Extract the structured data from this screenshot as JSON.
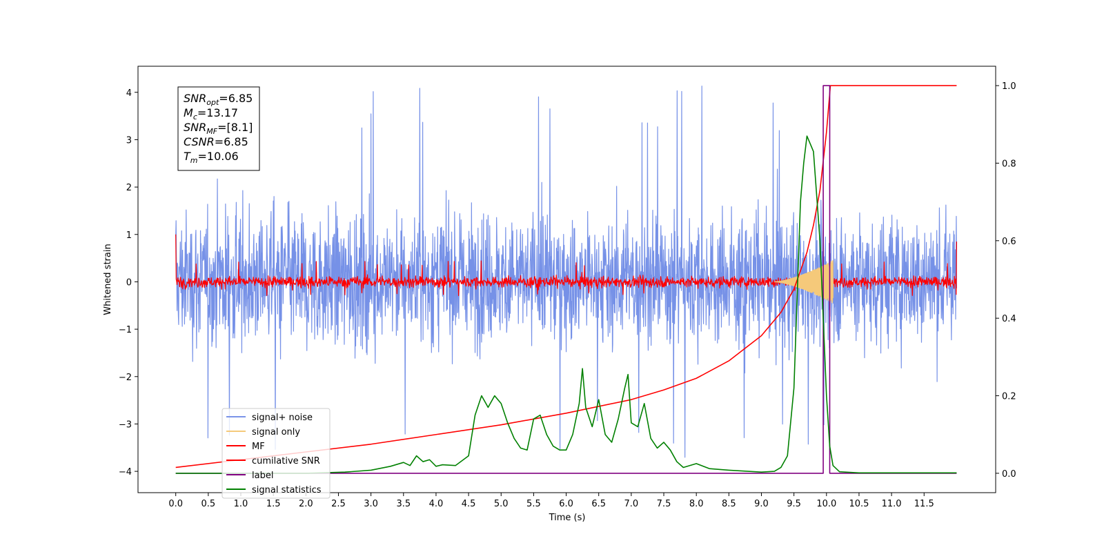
{
  "chart_data": {
    "type": "line",
    "title": "",
    "xlabel": "Time (s)",
    "ylabel": "Whitened strain",
    "y2label": "",
    "xlim": [
      -0.58,
      12.6
    ],
    "ylim": [
      -4.45,
      4.55
    ],
    "y2lim": [
      -0.05,
      1.05
    ],
    "x_ticks": [
      "0.0",
      "0.5",
      "1.0",
      "1.5",
      "2.0",
      "2.5",
      "3.0",
      "3.5",
      "4.0",
      "4.5",
      "5.0",
      "5.5",
      "6.0",
      "6.5",
      "7.0",
      "7.5",
      "8.0",
      "8.5",
      "9.0",
      "9.5",
      "10.0",
      "10.5",
      "11.0",
      "11.5"
    ],
    "y_ticks": [
      "4",
      "3",
      "2",
      "1",
      "0",
      "−1",
      "−2",
      "−3",
      "−4"
    ],
    "y2_ticks": [
      "1.0",
      "0.8",
      "0.6",
      "0.4",
      "0.2",
      "0.0"
    ],
    "grid": false,
    "legend_position": "lower-left",
    "annotation": {
      "lines": [
        {
          "sym": "SNR",
          "sub": "opt",
          "value": "=6.85"
        },
        {
          "sym": "M",
          "sub": "c",
          "value": "=13.17"
        },
        {
          "sym": "SNR",
          "sub": "MF",
          "value": "=[8.1]"
        },
        {
          "sym": "CSNR",
          "sub": "",
          "value": "=6.85"
        },
        {
          "sym": "T",
          "sub": "m",
          "value": "=10.06"
        }
      ]
    },
    "series": [
      {
        "name": "signal+ noise",
        "axis": "left",
        "color": "#6f8be6",
        "kind": "noise",
        "x_range": [
          0.0,
          12.0
        ],
        "band_typical": [
          -1.7,
          1.8
        ],
        "band_peak": [
          -3.8,
          4.2
        ]
      },
      {
        "name": "signal only",
        "axis": "left",
        "color": "#f5c97a",
        "kind": "chirp",
        "x_range": [
          9.2,
          10.1
        ],
        "peak_amplitude": 0.45
      },
      {
        "name": "MF",
        "axis": "left",
        "color": "#ff0000",
        "kind": "noise",
        "x_range": [
          0.0,
          12.0
        ],
        "band_typical": [
          -0.15,
          0.15
        ],
        "band_peak": [
          -0.3,
          0.45
        ],
        "edge_values": [
          1.0,
          0.85
        ]
      },
      {
        "name": "cumilative SNR",
        "axis": "right",
        "color": "#ff0000",
        "kind": "line",
        "x": [
          0.0,
          1.0,
          2.0,
          3.0,
          4.0,
          5.0,
          6.0,
          7.0,
          7.5,
          8.0,
          8.5,
          9.0,
          9.3,
          9.5,
          9.7,
          9.8,
          9.9,
          10.0,
          10.06,
          10.5,
          11.0,
          11.5,
          12.0
        ],
        "values": [
          0.015,
          0.035,
          0.055,
          0.075,
          0.1,
          0.125,
          0.155,
          0.19,
          0.215,
          0.245,
          0.29,
          0.355,
          0.415,
          0.475,
          0.57,
          0.64,
          0.73,
          0.88,
          1.0,
          1.0,
          1.0,
          1.0,
          1.0
        ]
      },
      {
        "name": "label",
        "axis": "right",
        "color": "#800080",
        "kind": "line",
        "x": [
          0.0,
          9.95,
          9.95,
          10.05,
          10.05,
          10.15,
          10.15,
          12.0
        ],
        "values": [
          0.0,
          0.0,
          1.0,
          1.0,
          0.0,
          0.0,
          0.0,
          0.0
        ]
      },
      {
        "name": "signal statistics",
        "axis": "right",
        "color": "#008000",
        "kind": "line",
        "x": [
          0.0,
          2.0,
          2.6,
          3.0,
          3.3,
          3.5,
          3.6,
          3.7,
          3.8,
          3.9,
          4.0,
          4.1,
          4.3,
          4.5,
          4.6,
          4.7,
          4.8,
          4.9,
          5.0,
          5.1,
          5.2,
          5.3,
          5.4,
          5.5,
          5.6,
          5.7,
          5.8,
          5.9,
          6.0,
          6.1,
          6.2,
          6.25,
          6.3,
          6.4,
          6.5,
          6.6,
          6.7,
          6.8,
          6.9,
          6.95,
          7.0,
          7.1,
          7.2,
          7.3,
          7.4,
          7.5,
          7.6,
          7.7,
          7.8,
          8.0,
          8.2,
          8.5,
          9.0,
          9.2,
          9.3,
          9.4,
          9.5,
          9.6,
          9.65,
          9.7,
          9.75,
          9.8,
          9.9,
          10.0,
          10.05,
          10.1,
          10.2,
          10.5,
          12.0
        ],
        "values": [
          0.0,
          0.0,
          0.003,
          0.008,
          0.018,
          0.028,
          0.02,
          0.045,
          0.03,
          0.035,
          0.018,
          0.022,
          0.02,
          0.045,
          0.15,
          0.2,
          0.17,
          0.2,
          0.18,
          0.13,
          0.09,
          0.065,
          0.06,
          0.14,
          0.15,
          0.1,
          0.07,
          0.06,
          0.06,
          0.1,
          0.18,
          0.27,
          0.17,
          0.12,
          0.19,
          0.1,
          0.08,
          0.14,
          0.22,
          0.255,
          0.13,
          0.12,
          0.18,
          0.09,
          0.065,
          0.08,
          0.06,
          0.03,
          0.015,
          0.025,
          0.012,
          0.008,
          0.003,
          0.005,
          0.015,
          0.045,
          0.22,
          0.7,
          0.8,
          0.87,
          0.85,
          0.83,
          0.6,
          0.2,
          0.07,
          0.02,
          0.004,
          0.001,
          0.001
        ]
      }
    ]
  }
}
